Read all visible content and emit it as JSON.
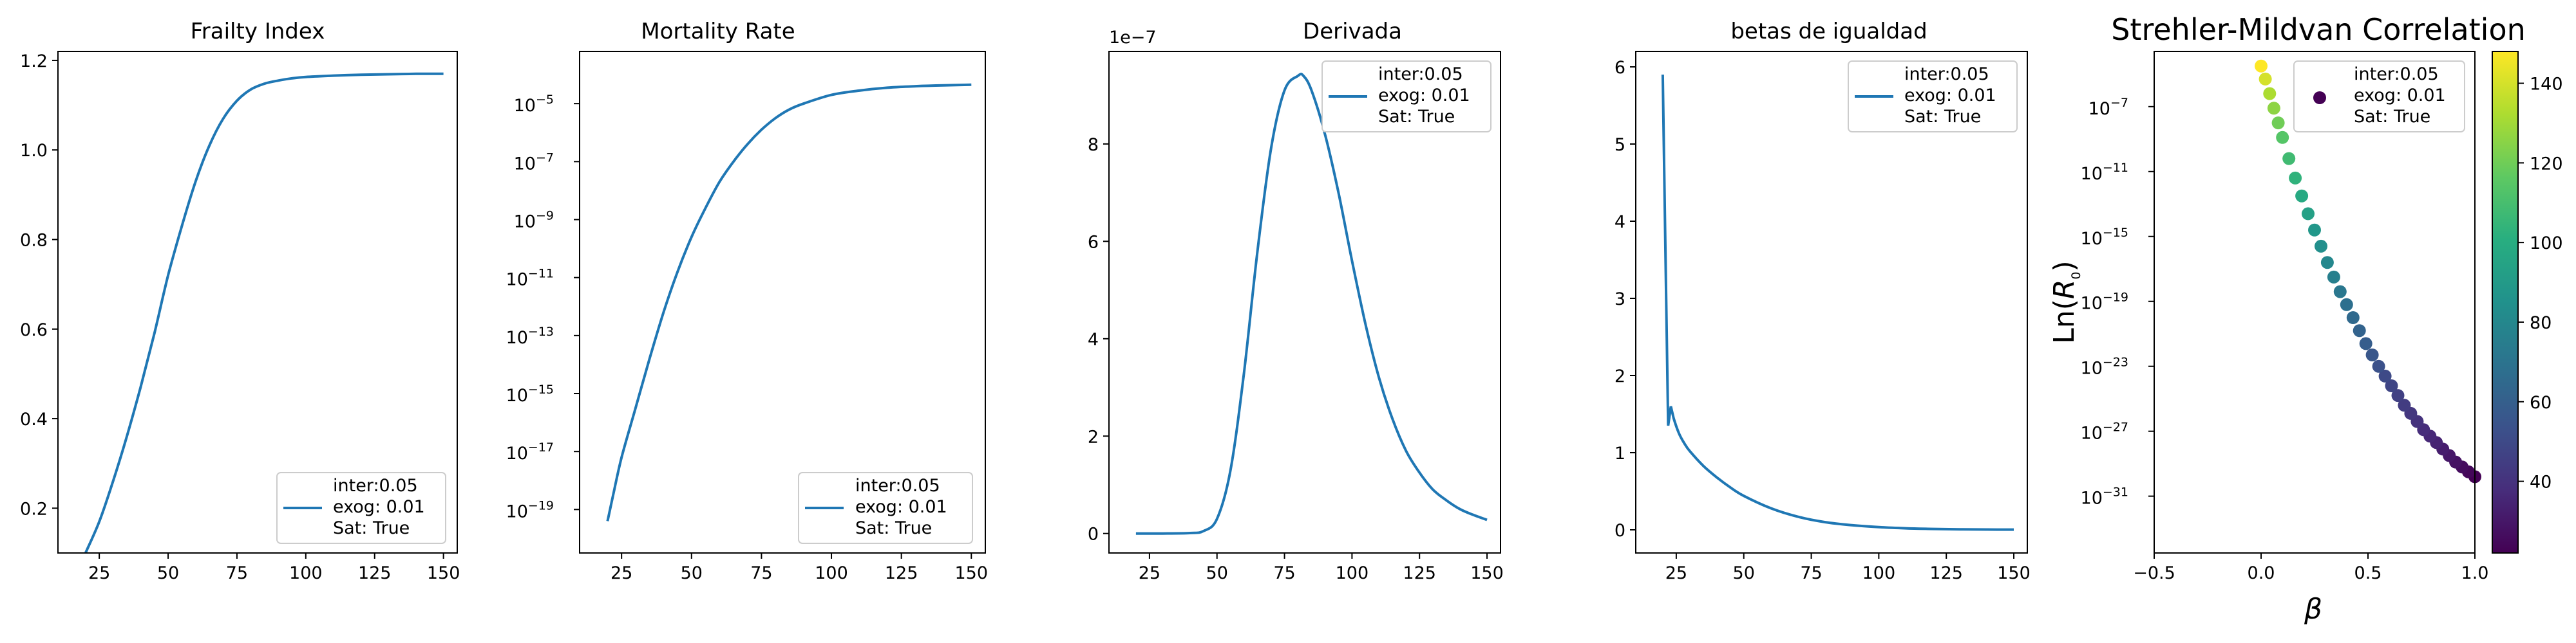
{
  "chart_data": [
    {
      "type": "line",
      "title": "Frailty Index",
      "xlim": [
        10,
        155
      ],
      "ylim": [
        0.1,
        1.22
      ],
      "x_ticks": [
        25,
        50,
        75,
        100,
        125,
        150
      ],
      "y_ticks": [
        0.2,
        0.4,
        0.6,
        0.8,
        1.0,
        1.2
      ],
      "y_tick_labels": [
        "0.2",
        "0.4",
        "0.6",
        "0.8",
        "1.0",
        "1.2"
      ],
      "legend": {
        "position": "lower right",
        "lines": [
          "inter:0.05",
          "exog: 0.01",
          "Sat: True"
        ]
      },
      "series": [
        {
          "color": "#1f77b4",
          "x": [
            20,
            25,
            30,
            35,
            40,
            45,
            50,
            55,
            60,
            65,
            70,
            75,
            80,
            85,
            90,
            95,
            100,
            110,
            120,
            130,
            140,
            150
          ],
          "y": [
            0.1,
            0.17,
            0.26,
            0.36,
            0.47,
            0.59,
            0.72,
            0.83,
            0.93,
            1.01,
            1.07,
            1.11,
            1.135,
            1.148,
            1.155,
            1.16,
            1.163,
            1.166,
            1.168,
            1.169,
            1.17,
            1.17
          ]
        }
      ]
    },
    {
      "type": "line",
      "title": "Mortality Rate",
      "yscale": "log",
      "xlim": [
        10,
        155
      ],
      "ylim_log10": [
        -20.5,
        -3.2
      ],
      "x_ticks": [
        25,
        50,
        75,
        100,
        125,
        150
      ],
      "y_ticks_log10": [
        -19,
        -17,
        -15,
        -13,
        -11,
        -9,
        -7,
        -5
      ],
      "y_tick_labels": [
        "10^-19",
        "10^-17",
        "10^-15",
        "10^-13",
        "10^-11",
        "10^-9",
        "10^-7",
        "10^-5"
      ],
      "legend": {
        "position": "lower right",
        "lines": [
          "inter:0.05",
          "exog: 0.01",
          "Sat: True"
        ]
      },
      "series": [
        {
          "color": "#1f77b4",
          "x": [
            20,
            22,
            25,
            30,
            35,
            40,
            45,
            50,
            55,
            60,
            65,
            70,
            75,
            80,
            85,
            90,
            100,
            110,
            120,
            130,
            140,
            150
          ],
          "y_log10": [
            -19.4,
            -18.5,
            -17.2,
            -15.5,
            -13.8,
            -12.2,
            -10.8,
            -9.6,
            -8.6,
            -7.7,
            -7.0,
            -6.4,
            -5.9,
            -5.5,
            -5.2,
            -5.0,
            -4.7,
            -4.55,
            -4.45,
            -4.4,
            -4.37,
            -4.35
          ]
        }
      ]
    },
    {
      "type": "line",
      "title": "Derivada",
      "offset_text": "1e−7",
      "xlim": [
        10,
        155
      ],
      "ylim": [
        -0.4,
        9.9
      ],
      "x_ticks": [
        25,
        50,
        75,
        100,
        125,
        150
      ],
      "y_ticks": [
        0,
        2,
        4,
        6,
        8
      ],
      "y_tick_labels": [
        "0",
        "2",
        "4",
        "6",
        "8"
      ],
      "legend": {
        "position": "upper right",
        "lines": [
          "inter:0.05",
          "exog: 0.01",
          "Sat: True"
        ]
      },
      "series": [
        {
          "color": "#1f77b4",
          "x": [
            20,
            30,
            40,
            45,
            50,
            55,
            60,
            65,
            70,
            75,
            80,
            82,
            85,
            90,
            95,
            100,
            105,
            110,
            115,
            120,
            125,
            130,
            135,
            140,
            145,
            150
          ],
          "y": [
            0,
            0,
            0.01,
            0.05,
            0.3,
            1.3,
            3.3,
            5.8,
            7.9,
            9.1,
            9.4,
            9.4,
            9.1,
            8.2,
            7.0,
            5.6,
            4.3,
            3.2,
            2.35,
            1.7,
            1.25,
            0.9,
            0.68,
            0.5,
            0.38,
            0.28
          ]
        }
      ]
    },
    {
      "type": "line",
      "title": "betas de igualdad",
      "xlim": [
        10,
        155
      ],
      "ylim": [
        -0.3,
        6.2
      ],
      "x_ticks": [
        25,
        50,
        75,
        100,
        125,
        150
      ],
      "y_ticks": [
        0,
        1,
        2,
        3,
        4,
        5,
        6
      ],
      "y_tick_labels": [
        "0",
        "1",
        "2",
        "3",
        "4",
        "5",
        "6"
      ],
      "legend": {
        "position": "upper right",
        "lines": [
          "inter:0.05",
          "exog: 0.01",
          "Sat: True"
        ]
      },
      "series": [
        {
          "color": "#1f77b4",
          "x": [
            20,
            21,
            22,
            23,
            24,
            26,
            28,
            30,
            35,
            40,
            45,
            50,
            60,
            70,
            80,
            90,
            100,
            110,
            120,
            130,
            140,
            150
          ],
          "y": [
            5.9,
            3.6,
            1.35,
            1.6,
            1.45,
            1.25,
            1.12,
            1.02,
            0.83,
            0.68,
            0.55,
            0.44,
            0.28,
            0.17,
            0.1,
            0.06,
            0.035,
            0.02,
            0.012,
            0.007,
            0.004,
            0.003
          ]
        }
      ]
    },
    {
      "type": "scatter",
      "title": "Strehler-Mildvan Correlation",
      "xlabel": "β",
      "ylabel": "Ln(R0)",
      "yscale": "log",
      "xlim": [
        -0.5,
        1.0
      ],
      "ylim_log10": [
        -34.5,
        -3.6
      ],
      "x_ticks": [
        -0.5,
        0.0,
        0.5,
        1.0
      ],
      "x_tick_labels": [
        "−0.5",
        "0.0",
        "0.5",
        "1.0"
      ],
      "y_ticks_log10": [
        -31,
        -27,
        -23,
        -19,
        -15,
        -11,
        -7
      ],
      "y_tick_labels": [
        "10^-31",
        "10^-27",
        "10^-23",
        "10^-19",
        "10^-15",
        "10^-11",
        "10^-7"
      ],
      "legend": {
        "position": "upper right",
        "lines": [
          "inter:0.05",
          "exog: 0.01",
          "Sat: True"
        ]
      },
      "colorbar": {
        "cmap": "viridis",
        "min": 22,
        "max": 148,
        "ticks": [
          40,
          60,
          80,
          100,
          120,
          140
        ],
        "tick_labels": [
          "40",
          "60",
          "80",
          "100",
          "120",
          "140"
        ]
      },
      "points_beta": [
        0.0,
        0.02,
        0.04,
        0.06,
        0.08,
        0.1,
        0.13,
        0.16,
        0.19,
        0.22,
        0.25,
        0.28,
        0.31,
        0.34,
        0.37,
        0.4,
        0.43,
        0.46,
        0.49,
        0.52,
        0.55,
        0.58,
        0.61,
        0.64,
        0.67,
        0.7,
        0.73,
        0.76,
        0.79,
        0.82,
        0.85,
        0.88,
        0.91,
        0.94,
        0.97,
        1.0
      ],
      "points_lnR0_log10": [
        -4.5,
        -5.3,
        -6.2,
        -7.1,
        -8.0,
        -8.9,
        -10.2,
        -11.4,
        -12.5,
        -13.6,
        -14.6,
        -15.6,
        -16.6,
        -17.5,
        -18.4,
        -19.2,
        -20.0,
        -20.8,
        -21.6,
        -22.3,
        -23.0,
        -23.6,
        -24.2,
        -24.8,
        -25.4,
        -25.9,
        -26.4,
        -26.9,
        -27.3,
        -27.7,
        -28.1,
        -28.5,
        -28.9,
        -29.2,
        -29.5,
        -29.8
      ],
      "points_age": [
        148,
        140,
        132,
        126,
        120,
        114,
        108,
        103,
        98,
        93,
        88,
        84,
        80,
        76,
        72,
        68,
        65,
        62,
        59,
        56,
        53,
        50,
        48,
        46,
        44,
        42,
        40,
        38,
        36,
        34,
        32,
        30,
        28,
        26,
        24,
        22
      ]
    }
  ]
}
